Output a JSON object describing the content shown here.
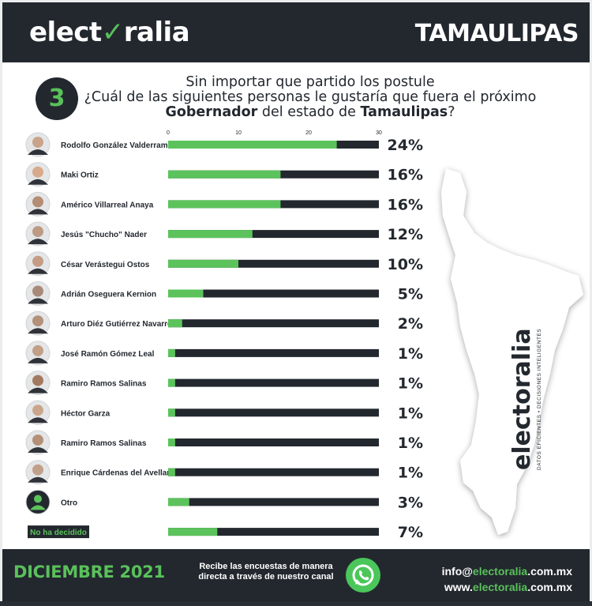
{
  "header": {
    "brand_left": "elect",
    "brand_v": "✓",
    "brand_right": "ralia",
    "state": "TAMAULIPAS"
  },
  "question": {
    "number": "3",
    "line1": "Sin importar que partido los postule",
    "line2": "¿Cuál de las siguientes personas le gustaría que fuera el próximo",
    "line3_bold1": "Gobernador",
    "line3_mid": " del estado de ",
    "line3_bold2": "Tamaulipas",
    "line3_end": "?"
  },
  "map_brand": {
    "name": "electoralia",
    "tagline": "DATOS EFICIENTES • DECISIONES INTELIGENTES"
  },
  "chart_data": {
    "type": "bar",
    "orientation": "horizontal",
    "xlim": [
      0,
      30
    ],
    "ticks": [
      0,
      10,
      20,
      30
    ],
    "categories": [
      "Rodolfo González Valderrama",
      "Maki Ortiz",
      "Américo Villarreal Anaya",
      "Jesús \"Chucho\" Nader",
      "César Verástegui Ostos",
      "Adrián Oseguera Kernion",
      "Arturo Diéz Gutiérrez Navarro",
      "José Ramón Gómez Leal",
      "Ramiro Ramos Salinas",
      "Héctor Garza",
      "Ramiro Ramos Salinas",
      "Enrique Cárdenas del Avellano",
      "Otro",
      "No ha decidido"
    ],
    "values": [
      24,
      16,
      16,
      12,
      10,
      5,
      2,
      1,
      1,
      1,
      1,
      1,
      3,
      7
    ],
    "labels": [
      "24%",
      "16%",
      "16%",
      "12%",
      "10%",
      "5%",
      "2%",
      "1%",
      "1%",
      "1%",
      "1%",
      "1%",
      "3%",
      "7%"
    ],
    "colors": {
      "fill": "#5cc35c",
      "track": "#23282f"
    }
  },
  "footer": {
    "date": "DICIEMBRE 2021",
    "text1": "Recibe las encuestas de manera",
    "text2": "directa a través de nuestro canal",
    "email_a": "info@",
    "email_b": "electoralia",
    "email_c": ".com.mx",
    "web_a": "www.",
    "web_b": "electoralia",
    "web_c": ".com.mx"
  }
}
